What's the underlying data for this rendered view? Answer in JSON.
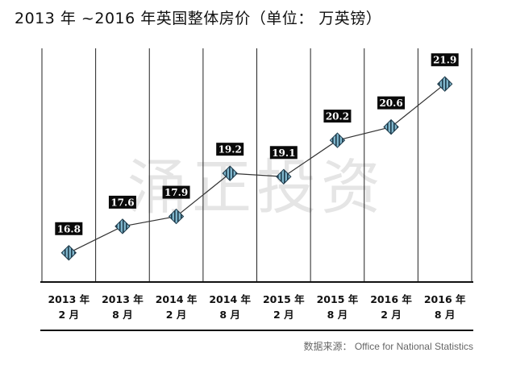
{
  "chart_data": {
    "type": "line",
    "title": "2013 年 ~2016 年英国整体房价（单位： 万英镑）",
    "categories": [
      [
        "2013 年",
        "2 月"
      ],
      [
        "2013 年",
        "8 月"
      ],
      [
        "2014 年",
        "2 月"
      ],
      [
        "2014 年",
        "8 月"
      ],
      [
        "2015 年",
        "2 月"
      ],
      [
        "2015 年",
        "8 月"
      ],
      [
        "2016 年",
        "2 月"
      ],
      [
        "2016 年",
        "8 月"
      ]
    ],
    "values": [
      16.8,
      17.6,
      17.9,
      19.2,
      19.1,
      20.2,
      20.6,
      21.9
    ],
    "data_labels": [
      "16.8",
      "17.6",
      "17.9",
      "19.2",
      "19.1",
      "20.2",
      "20.6",
      "21.9"
    ],
    "ylim": [
      16.0,
      22.5
    ],
    "grid": "vertical",
    "legend": "none",
    "source": "数据来源： Office for National Statistics",
    "watermark": "涌正投资",
    "colors": {
      "line": "#333333",
      "marker_fill": "#7fb6cc",
      "marker_stripe": "#1e3a4a",
      "label_bg": "#0a0a0a",
      "label_text": "#ffffff",
      "grid": "#222222"
    }
  }
}
